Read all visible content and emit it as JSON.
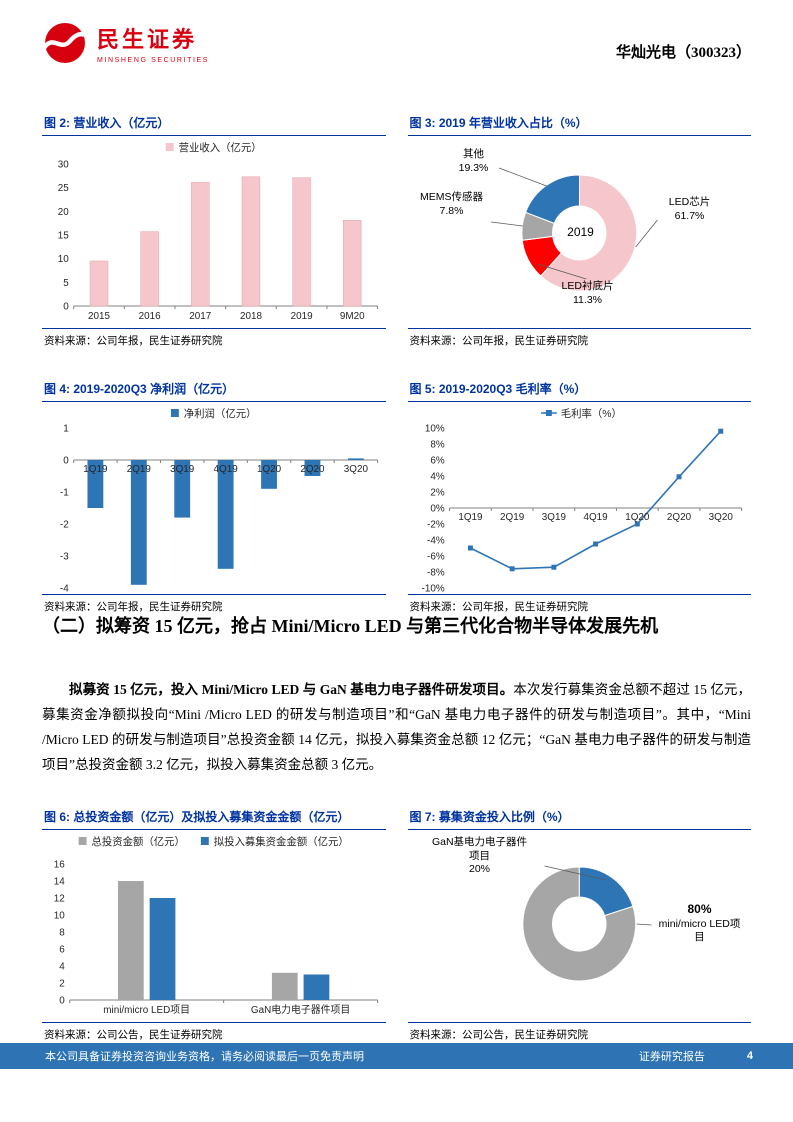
{
  "header": {
    "brand_cn": "民生证券",
    "brand_en": "MINSHENG SECURITIES",
    "stock_title": "华灿光电（300323）"
  },
  "colors": {
    "brand_red": "#D7000F",
    "title_navy": "#0033A0",
    "footer_blue": "#2E74B5",
    "pink": "#F5C6CB",
    "blue": "#2E75B6",
    "gray": "#A6A6A6",
    "red": "#FE0000"
  },
  "section": {
    "heading": "（二）拟筹资 15 亿元，抢占 Mini/Micro LED 与第三代化合物半导体发展先机",
    "para_bold": "拟募资 15 亿元，投入 Mini/Micro LED 与 GaN 基电力电子器件研发项目。",
    "para_rest": "本次发行募集资金总额不超过 15 亿元，募集资金净额拟投向“Mini /Micro LED 的研发与制造项目”和“GaN 基电力电子器件的研发与制造项目”。其中，“Mini /Micro LED 的研发与制造项目”总投资金额 14 亿元，拟投入募集资金总额 12 亿元；“GaN 基电力电子器件的研发与制造项目”总投资金额 3.2 亿元，拟投入募集资金总额 3 亿元。"
  },
  "footer": {
    "left": "本公司具备证券投资咨询业务资格，请务必阅读最后一页免责声明",
    "right": "证券研究报告",
    "page": "4"
  },
  "chart_data": [
    {
      "id": "fig2",
      "type": "bar",
      "title": "图 2: 营业收入（亿元）",
      "source": "资料来源：公司年报，民生证券研究院",
      "legend": [
        "营业收入（亿元）"
      ],
      "categories": [
        "2015",
        "2016",
        "2017",
        "2018",
        "2019",
        "9M20"
      ],
      "values": [
        9.5,
        15.7,
        26.1,
        27.3,
        27.1,
        18.1
      ],
      "ylim": [
        0,
        30
      ],
      "ytick_step": 5,
      "color": "#F5C6CB",
      "stroke": "#E6A9B0",
      "legend_position": "top",
      "grid": false
    },
    {
      "id": "fig3",
      "type": "donut",
      "title": "图 3: 2019 年营业收入占比（%）",
      "source": "资料来源：公司年报，民生证券研究院",
      "center_label": "2019",
      "slices": [
        {
          "label": "LED芯片",
          "pct": 61.7,
          "pct_label": "61.7%",
          "color": "#F5C6CB"
        },
        {
          "label": "LED衬底片",
          "pct": 11.3,
          "pct_label": "11.3%",
          "color": "#FE0000"
        },
        {
          "label": "MEMS传感器",
          "pct": 7.8,
          "pct_label": "7.8%",
          "color": "#A6A6A6"
        },
        {
          "label": "其他",
          "pct": 19.3,
          "pct_label": "19.3%",
          "color": "#2E75B6"
        }
      ]
    },
    {
      "id": "fig4",
      "type": "bar",
      "title": "图 4: 2019-2020Q3 净利润（亿元）",
      "source": "资料来源：公司年报，民生证券研究院",
      "legend": [
        "净利润（亿元）"
      ],
      "categories": [
        "1Q19",
        "2Q19",
        "3Q19",
        "4Q19",
        "1Q20",
        "2Q20",
        "3Q20"
      ],
      "values": [
        -1.5,
        -3.9,
        -1.8,
        -3.4,
        -0.9,
        -0.5,
        0.05
      ],
      "ylim": [
        -4,
        1
      ],
      "ytick_step": 1,
      "color": "#2E75B6",
      "legend_position": "top",
      "grid": false
    },
    {
      "id": "fig5",
      "type": "line",
      "title": "图 5: 2019-2020Q3 毛利率（%）",
      "source": "资料来源：公司年报，民生证券研究院",
      "legend": [
        "毛利率（%）"
      ],
      "categories": [
        "1Q19",
        "2Q19",
        "3Q19",
        "4Q19",
        "1Q20",
        "2Q20",
        "3Q20"
      ],
      "values": [
        -5.0,
        -7.6,
        -7.4,
        -4.5,
        -2.0,
        3.9,
        9.6
      ],
      "ylim": [
        -10,
        10
      ],
      "ytick_step": 2,
      "unit": "%",
      "color": "#2E75B6",
      "legend_position": "top",
      "grid": false
    },
    {
      "id": "fig6",
      "type": "grouped-bar",
      "title": "图 6: 总投资金额（亿元）及拟投入募集资金金额（亿元）",
      "source": "资料来源：公司公告，民生证券研究院",
      "categories": [
        "mini/micro LED项目",
        "GaN电力电子器件项目"
      ],
      "series": [
        {
          "name": "总投资金额（亿元）",
          "color": "#A6A6A6",
          "values": [
            14,
            3.2
          ]
        },
        {
          "name": "拟投入募集资金金额（亿元）",
          "color": "#2E75B6",
          "values": [
            12,
            3
          ]
        }
      ],
      "ylim": [
        0,
        16
      ],
      "ytick_step": 2,
      "legend_position": "top",
      "grid": false
    },
    {
      "id": "fig7",
      "type": "donut",
      "title": "图 7: 募集资金投入比例（%）",
      "source": "资料来源：公司公告，民生证券研究院",
      "slices": [
        {
          "label": "GaN基电力电子器件项目",
          "pct": 20,
          "pct_label": "20%",
          "color": "#2E75B6"
        },
        {
          "label": "mini/micro LED项目",
          "pct": 80,
          "pct_label": "80%",
          "color": "#A6A6A6"
        }
      ]
    }
  ]
}
